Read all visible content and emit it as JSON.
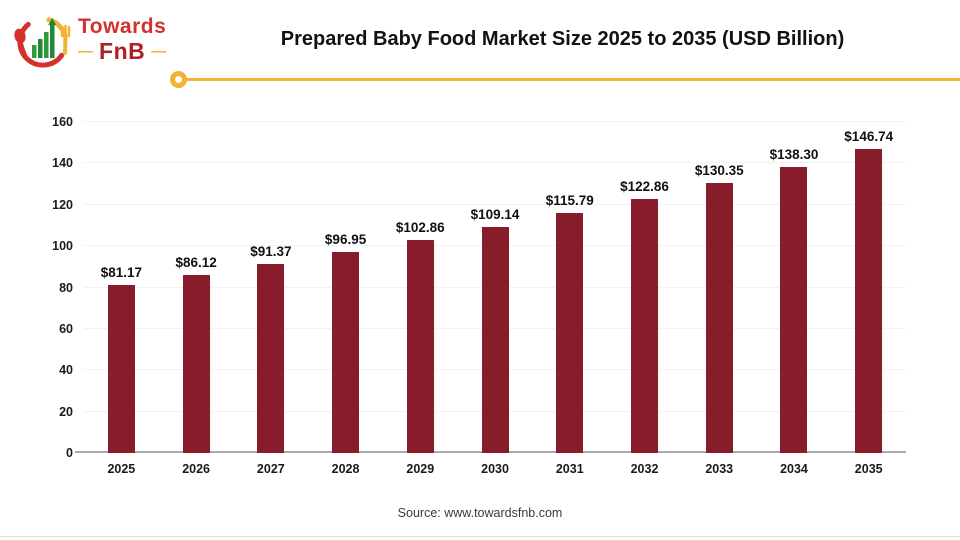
{
  "logo": {
    "brand_top": "Towards",
    "brand_bottom": "FnB",
    "dash": "—",
    "emblem": "bar-chart-with-spoon-and-fork"
  },
  "header": {
    "title": "Prepared Baby Food Market Size 2025 to 2035 (USD Billion)"
  },
  "chart_data": {
    "type": "bar",
    "title": "Prepared Baby Food Market Size 2025 to 2035 (USD Billion)",
    "categories": [
      "2025",
      "2026",
      "2027",
      "2028",
      "2029",
      "2030",
      "2031",
      "2032",
      "2033",
      "2034",
      "2035"
    ],
    "values": [
      81.17,
      86.12,
      91.37,
      96.95,
      102.86,
      109.14,
      115.79,
      122.86,
      130.35,
      138.3,
      146.74
    ],
    "value_labels": [
      "$81.17",
      "$86.12",
      "$91.37",
      "$96.95",
      "$102.86",
      "$109.14",
      "$115.79",
      "$122.86",
      "$130.35",
      "$138.30",
      "$146.74"
    ],
    "xlabel": "",
    "ylabel": "",
    "ylim": [
      0,
      160
    ],
    "yticks": [
      0,
      20,
      40,
      60,
      80,
      100,
      120,
      140,
      160
    ],
    "grid": true,
    "legend": false,
    "bar_color": "#871C2B"
  },
  "footer": {
    "source": "Source: www.towardsfnb.com"
  },
  "colors": {
    "bar": "#871C2B",
    "accent_yellow": "#F2B233",
    "brand_red": "#D5302C",
    "brand_dark_red": "#B01F24",
    "grid": "#F2F2F2",
    "axis": "#ACACAC"
  }
}
